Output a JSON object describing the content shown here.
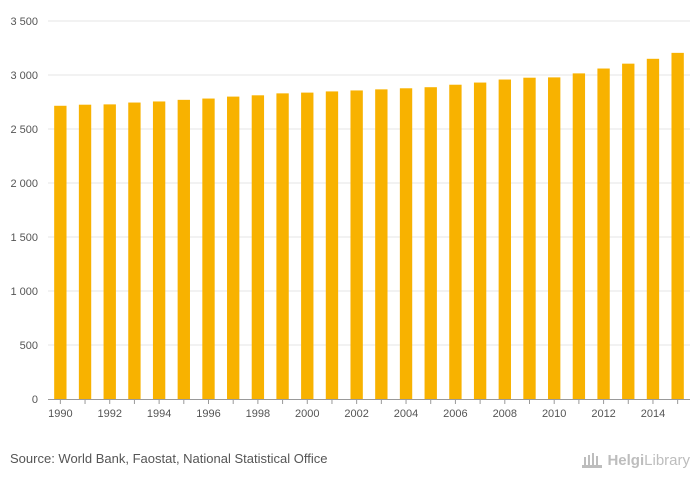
{
  "chart_data": {
    "type": "bar",
    "categories": [
      "1990",
      "1991",
      "1992",
      "1993",
      "1994",
      "1995",
      "1996",
      "1997",
      "1998",
      "1999",
      "2000",
      "2001",
      "2002",
      "2003",
      "2004",
      "2005",
      "2006",
      "2007",
      "2008",
      "2009",
      "2010",
      "2011",
      "2012",
      "2013",
      "2014",
      "2015"
    ],
    "values": [
      2715,
      2725,
      2728,
      2745,
      2755,
      2770,
      2782,
      2800,
      2812,
      2830,
      2837,
      2848,
      2857,
      2867,
      2877,
      2887,
      2910,
      2930,
      2958,
      2975,
      2978,
      3015,
      3060,
      3105,
      3150,
      3205
    ],
    "x_tick_labels": [
      "1990",
      "1992",
      "1994",
      "1996",
      "1998",
      "2000",
      "2002",
      "2004",
      "2006",
      "2008",
      "2010",
      "2012",
      "2014"
    ],
    "y_ticks": [
      0,
      500,
      1000,
      1500,
      2000,
      2500,
      3000,
      3500
    ],
    "y_tick_labels": [
      "0",
      "500",
      "1 000",
      "1 500",
      "2 000",
      "2 500",
      "3 000",
      "3 500"
    ],
    "ylim": [
      0,
      3500
    ],
    "grid": true,
    "legend": "none",
    "bar_color": "#F8B200"
  },
  "footer": {
    "source": "Source: World Bank, Faostat, National Statistical Office",
    "logo_helgi": "Helgi",
    "logo_library": "Library"
  },
  "colors": {
    "grid": "#e6e6e6",
    "axis": "#999999",
    "tick_text": "#555555",
    "logo": "#bdbdbd"
  }
}
